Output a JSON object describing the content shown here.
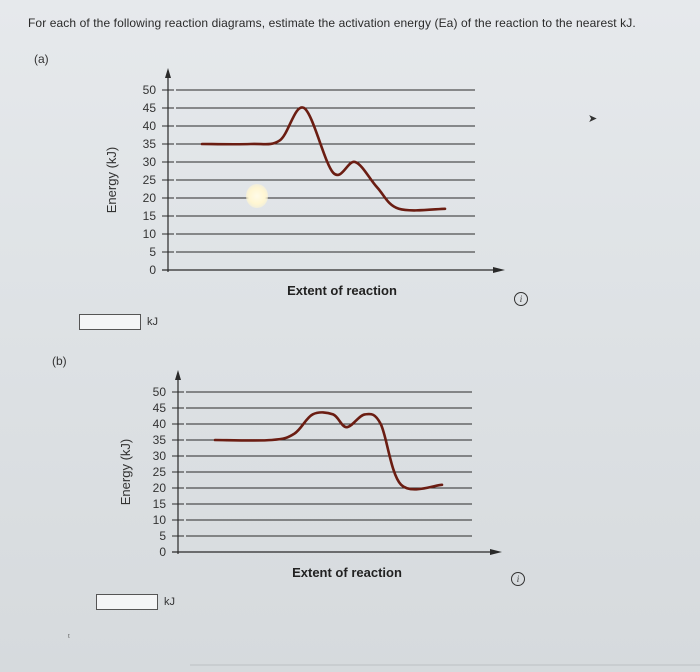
{
  "instruction": "For each of the following reaction diagrams, estimate the activation energy (Ea) of the reaction to the nearest kJ.",
  "parts": [
    {
      "label": "(a)",
      "answer": {
        "value": "",
        "unit": "kJ"
      },
      "chart_data": {
        "type": "line",
        "ylabel": "Energy (kJ)",
        "xlabel": "Extent of reaction",
        "ylim": [
          0,
          50
        ],
        "yticks": [
          "0",
          "5",
          "10",
          "15",
          "20",
          "25",
          "30",
          "35",
          "40",
          "45",
          "50"
        ],
        "grid": true,
        "series": [
          {
            "x": [
              0.0,
              0.2,
              0.32,
              0.42,
              0.54,
              0.63,
              0.72,
              0.81,
              1.0
            ],
            "y": [
              35,
              35,
              36,
              45,
              27,
              30,
              23,
              17,
              17
            ]
          }
        ]
      }
    },
    {
      "label": "(b)",
      "answer": {
        "value": "",
        "unit": "kJ"
      },
      "chart_data": {
        "type": "line",
        "ylabel": "Energy (kJ)",
        "xlabel": "Extent of reaction",
        "ylim": [
          0,
          50
        ],
        "yticks": [
          "0",
          "5",
          "10",
          "15",
          "20",
          "25",
          "30",
          "35",
          "40",
          "45",
          "50"
        ],
        "grid": true,
        "series": [
          {
            "x": [
              0.0,
              0.25,
              0.35,
              0.43,
              0.52,
              0.58,
              0.66,
              0.73,
              0.82,
              1.0
            ],
            "y": [
              35,
              35,
              37,
              43,
              43,
              39,
              43,
              40,
              21,
              21
            ]
          }
        ]
      }
    }
  ],
  "colors": {
    "curve": "#6b1d12",
    "axis": "#2a2a2a",
    "grid": "#2a2a2a"
  },
  "icons": {
    "info": "info-icon",
    "cursor": "cursor-icon"
  }
}
